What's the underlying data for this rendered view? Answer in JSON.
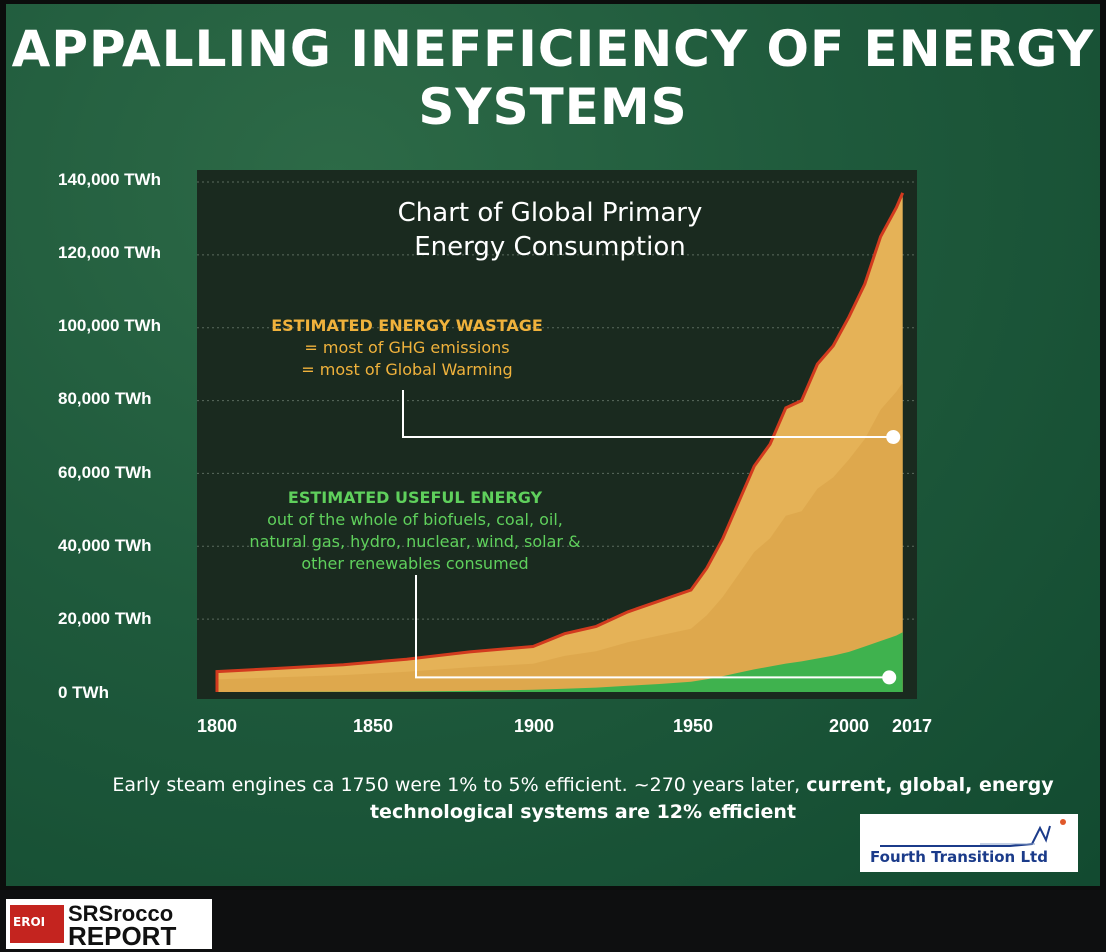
{
  "slide": {
    "title_line1": "APPALLING INEFFICIENCY OF ENERGY",
    "title_line2": "SYSTEMS",
    "caption_plain": "Early steam engines ca 1750 were 1% to 5% efficient. ~270 years later, ",
    "caption_bold_1": "current, global, energy",
    "caption_bold_2": "technological systems are 12% efficient",
    "colors": {
      "background": "#1f5a3c",
      "plot_bg": "#1a2a1f",
      "wastage": "#e5b257",
      "useful": "#3fb24e",
      "outline": "#d23a1e",
      "wastage_text": "#f0b23c",
      "useful_text": "#5fd05c"
    }
  },
  "logos": {
    "fourth_transition": "Fourth Transition Ltd",
    "srrocco_badge": "EROI",
    "srrocco_line1": "SRSrocco",
    "srrocco_line2": "REPORT"
  },
  "chart_data": {
    "type": "area",
    "title_line1": "Chart of Global Primary",
    "title_line2": "Energy Consumption",
    "y_ticks": [
      "0 TWh",
      "20,000 TWh",
      "40,000 TWh",
      "60,000 TWh",
      "80,000 TWh",
      "100,000 TWh",
      "120,000 TWh",
      "140,000 TWh"
    ],
    "x_ticks": [
      "1800",
      "1850",
      "1900",
      "1950",
      "2000",
      "2017"
    ],
    "xlim": [
      1800,
      2017
    ],
    "ylim": [
      0,
      140000
    ],
    "x": [
      1800,
      1820,
      1840,
      1860,
      1880,
      1900,
      1910,
      1920,
      1930,
      1940,
      1950,
      1955,
      1960,
      1965,
      1970,
      1975,
      1980,
      1985,
      1990,
      1995,
      2000,
      2005,
      2010,
      2015,
      2017
    ],
    "series": [
      {
        "name": "total",
        "values": [
          5600,
          6500,
          7500,
          9000,
          11000,
          12500,
          16000,
          18000,
          22000,
          25000,
          28000,
          34000,
          42000,
          52000,
          62000,
          68000,
          78000,
          80000,
          90000,
          95000,
          103000,
          112000,
          125000,
          133000,
          137000
        ]
      },
      {
        "name": "useful",
        "values": [
          10,
          20,
          50,
          150,
          300,
          600,
          900,
          1200,
          1700,
          2200,
          2800,
          3500,
          4300,
          5300,
          6200,
          7000,
          7800,
          8400,
          9200,
          10000,
          11000,
          12500,
          14000,
          15500,
          16400
        ]
      }
    ],
    "annotations": [
      {
        "head": "ESTIMATED ENERGY WASTAGE",
        "lines": [
          "= most of GHG emissions",
          "= most of Global Warming"
        ],
        "x": 2014,
        "y": 70000
      },
      {
        "head": "ESTIMATED USEFUL ENERGY",
        "lines": [
          "out of the whole of biofuels, coal, oil,",
          "natural gas, hydro, nuclear, wind, solar &",
          "other renewables consumed"
        ],
        "x": 2014,
        "y": 4000
      }
    ]
  }
}
